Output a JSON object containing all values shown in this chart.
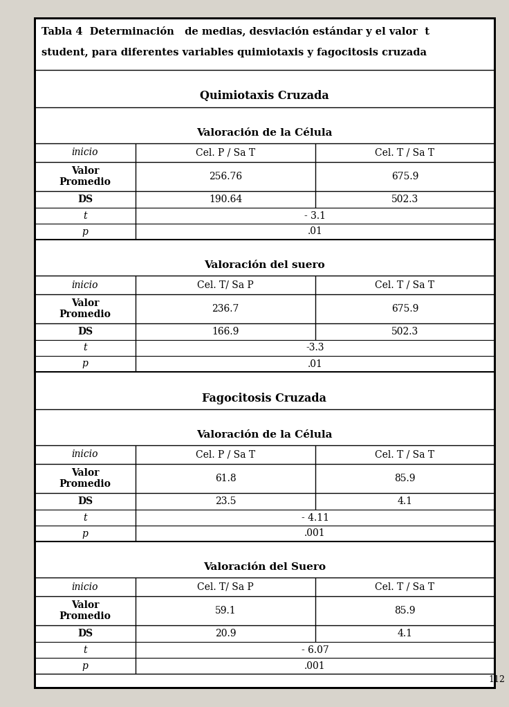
{
  "title_line1": "Tabla 4  Determinación   de medias, desviación estándar y el valor  t",
  "title_line2": "student, para diferentes variables quimiotaxis y fagocitosis cruzada",
  "page_number": "112",
  "bg_color": "#d8d4cc",
  "table_bg": "#ffffff",
  "sections": [
    {
      "section_header": "Quimiotaxis Cruzada",
      "subsections": [
        {
          "sub_header": "Valoración de la Célula",
          "col1_header": "Cel. P / Sa T",
          "col2_header": "Cel. T / Sa T",
          "rows": [
            {
              "label": "Valor\nPromedio",
              "col1": "256.76",
              "col2": "675.9",
              "span": false
            },
            {
              "label": "DS",
              "col1": "190.64",
              "col2": "502.3",
              "span": false
            },
            {
              "label": "t",
              "col1": "- 3.1",
              "col2": "",
              "span": true
            },
            {
              "label": "p",
              "col1": ".01",
              "col2": "",
              "span": true
            }
          ]
        },
        {
          "sub_header": "Valoración del suero",
          "col1_header": "Cel. T/ Sa P",
          "col2_header": "Cel. T / Sa T",
          "rows": [
            {
              "label": "Valor\nPromedio",
              "col1": "236.7",
              "col2": "675.9",
              "span": false
            },
            {
              "label": "DS",
              "col1": "166.9",
              "col2": "502.3",
              "span": false
            },
            {
              "label": "t",
              "col1": "-3.3",
              "col2": "",
              "span": true
            },
            {
              "label": "p",
              "col1": ".01",
              "col2": "",
              "span": true
            }
          ]
        }
      ]
    },
    {
      "section_header": "Fagocitosis Cruzada",
      "subsections": [
        {
          "sub_header": "Valoración de la Célula",
          "col1_header": "Cel. P / Sa T",
          "col2_header": "Cel. T / Sa T",
          "rows": [
            {
              "label": "Valor\nPromedio",
              "col1": "61.8",
              "col2": "85.9",
              "span": false
            },
            {
              "label": "DS",
              "col1": "23.5",
              "col2": "4.1",
              "span": false
            },
            {
              "label": "t",
              "col1": "- 4.11",
              "col2": "",
              "span": true
            },
            {
              "label": "p",
              "col1": ".001",
              "col2": "",
              "span": true
            }
          ]
        },
        {
          "sub_header": "Valoración del Suero",
          "col1_header": "Cel. T/ Sa P",
          "col2_header": "Cel. T / Sa T",
          "rows": [
            {
              "label": "Valor\nPromedio",
              "col1": "59.1",
              "col2": "85.9",
              "span": false
            },
            {
              "label": "DS",
              "col1": "20.9",
              "col2": "4.1",
              "span": false
            },
            {
              "label": "t",
              "col1": "- 6.07",
              "col2": "",
              "span": true
            },
            {
              "label": "p",
              "col1": ".001",
              "col2": "",
              "span": true
            }
          ]
        }
      ]
    }
  ]
}
